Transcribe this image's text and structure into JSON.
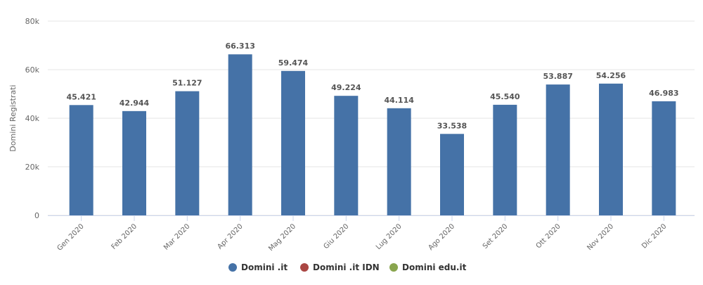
{
  "chart_data": {
    "type": "bar",
    "y_label": "Domini Registrati",
    "categories": [
      "Gen 2020",
      "Feb 2020",
      "Mar 2020",
      "Apr 2020",
      "Mag 2020",
      "Giu 2020",
      "Lug 2020",
      "Ago 2020",
      "Set 2020",
      "Ott 2020",
      "Nov 2020",
      "Dic 2020"
    ],
    "series": [
      {
        "name": "Domini .it",
        "color": "#4572a7",
        "values": [
          45421,
          42944,
          51127,
          66313,
          59474,
          49224,
          44114,
          33538,
          45540,
          53887,
          54256,
          46983
        ],
        "value_labels": [
          "45.421",
          "42.944",
          "51.127",
          "66.313",
          "59.474",
          "49.224",
          "44.114",
          "33.538",
          "45.540",
          "53.887",
          "54.256",
          "46.983"
        ]
      },
      {
        "name": "Domini .it IDN",
        "color": "#aa4643",
        "values": [
          null,
          null,
          null,
          null,
          null,
          null,
          null,
          null,
          null,
          null,
          null,
          null
        ]
      },
      {
        "name": "Domini edu.it",
        "color": "#89a54e",
        "values": [
          null,
          null,
          null,
          null,
          null,
          null,
          null,
          null,
          null,
          null,
          null,
          null
        ]
      }
    ],
    "ylim": [
      0,
      80000
    ],
    "yticks": [
      0,
      {
        "value": 20000,
        "label": "20k"
      },
      {
        "value": 40000,
        "label": "40k"
      },
      {
        "value": 60000,
        "label": "60k"
      },
      {
        "value": 80000,
        "label": "80k"
      }
    ],
    "grid": true,
    "legend": "bottom"
  }
}
